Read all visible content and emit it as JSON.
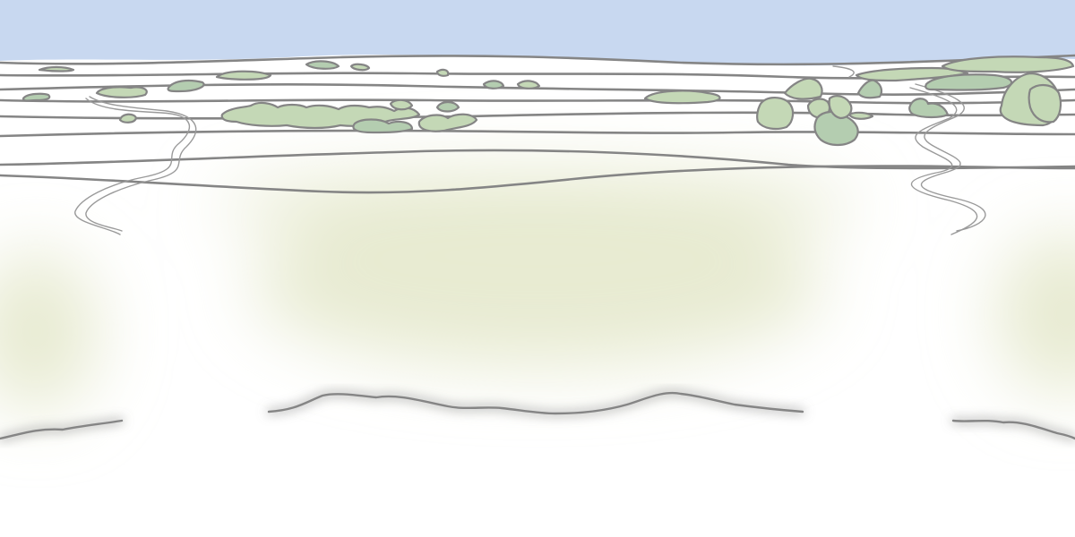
{
  "scene": {
    "kind": "hand-drawn landscape panorama",
    "colors": {
      "sky": "#c8d8f0",
      "ground": "#ffffff",
      "meadow_tint": "#e7ead0",
      "outline": "#858585",
      "tree_fill": "#c4d8b6",
      "tree_fill_dark": "#b4cdb0",
      "path": "#9a9a9a"
    },
    "layers": [
      "sky",
      "distant-hills",
      "tree-clumps",
      "winding-paths",
      "meadow-wash",
      "foreground-ridge"
    ]
  }
}
